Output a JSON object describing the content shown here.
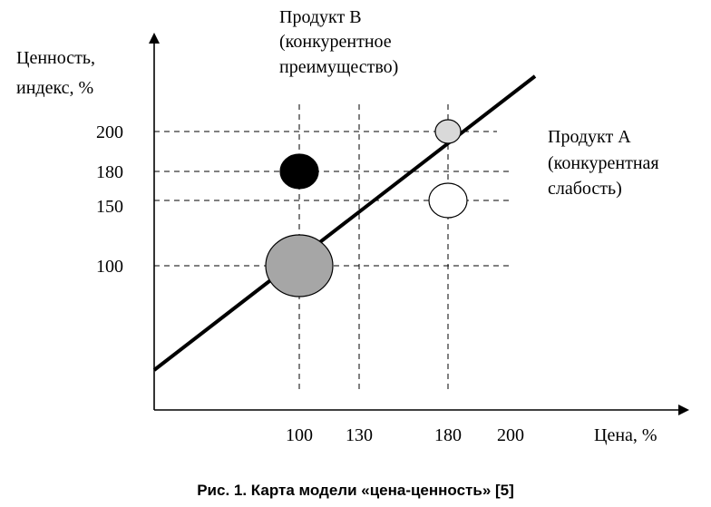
{
  "chart_data": {
    "type": "scatter",
    "caption": "Рис. 1. Карта модели «цена-ценность» [5]",
    "ylabel_lines": [
      "Ценность,",
      "индекс, %"
    ],
    "xlabel": "Цена, %",
    "x_ticks": [
      "100",
      "130",
      "180",
      "200"
    ],
    "y_ticks": [
      "200",
      "180",
      "150",
      "100"
    ],
    "annotations": {
      "product_b": [
        "Продукт В",
        "(конкурентное",
        "преимущество)"
      ],
      "product_a": [
        "Продукт А",
        "(конкурентная",
        "слабость)"
      ]
    },
    "trend_line": {
      "from": [
        0,
        0
      ],
      "to": [
        1,
        1
      ]
    },
    "points": [
      {
        "x": 100,
        "y": 100,
        "fill": "#a6a6a6",
        "size": "large"
      },
      {
        "x": 100,
        "y": 180,
        "fill": "#000000",
        "size": "medium"
      },
      {
        "x": 180,
        "y": 150,
        "fill": "#ffffff",
        "size": "medium"
      },
      {
        "x": 180,
        "y": 200,
        "fill": "#d9d9d9",
        "size": "small"
      }
    ]
  }
}
